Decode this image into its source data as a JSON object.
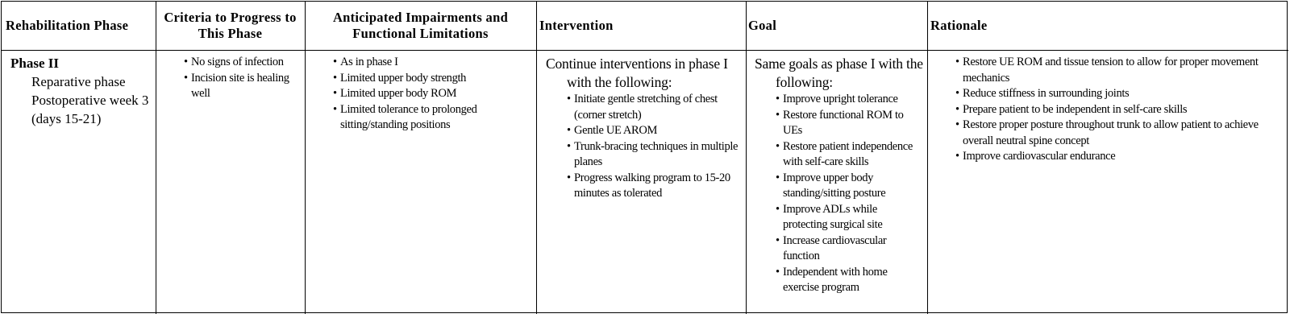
{
  "table": {
    "headers": [
      "Rehabilitation Phase",
      "Criteria to Progress to This Phase",
      "Anticipated Impairments and Functional Limitations",
      "Intervention",
      "Goal",
      "Rationale"
    ],
    "rows": [
      [
        {
          "title": "Phase II",
          "lines": [
            "Reparative phase",
            "Postoperative week 3 (days 15-21)"
          ]
        },
        {
          "bullets": [
            "No signs of infection",
            "Incision site is healing well"
          ]
        },
        {
          "bullets": [
            "As in phase I",
            "Limited upper body strength",
            "Limited upper body ROM",
            "Limited tolerance to prolonged sitting/standing positions"
          ]
        },
        {
          "intro": "Continue interventions in phase I with the following:",
          "bullets": [
            "Initiate gentle stretching of chest (corner stretch)",
            "Gentle UE AROM",
            "Trunk-bracing techniques in multiple planes",
            "Progress walking program to 15-20 minutes as tolerated"
          ]
        },
        {
          "intro": "Same goals as phase I with the following:",
          "bullets": [
            "Improve upright tolerance",
            "Restore functional ROM to UEs",
            "Restore patient independence with self-care skills",
            "Improve upper body standing/sitting posture",
            "Improve ADLs while protecting surgical site",
            "Increase cardiovascular function",
            "Independent with home exercise program"
          ]
        },
        {
          "bullets": [
            "Restore UE ROM and tissue tension to allow for proper movement mechanics",
            "Reduce stiffness in surrounding joints",
            "Prepare patient to be independent in self-care skills",
            "Restore proper posture throughout trunk to allow patient to achieve overall neutral spine concept",
            "Improve cardiovascular endurance"
          ]
        }
      ]
    ]
  }
}
